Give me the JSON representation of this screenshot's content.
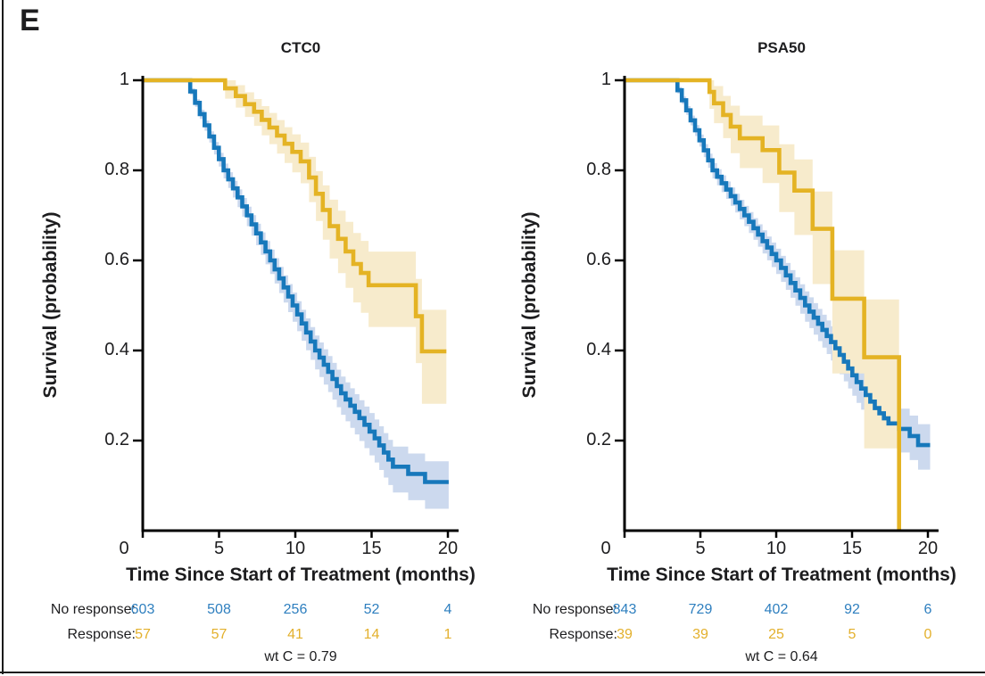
{
  "panel_label": "E",
  "colors": {
    "text": "#1d1d1f",
    "axis": "#000000",
    "no_response_line": "#1778bb",
    "response_line": "#e4b324",
    "no_response_band": "#ccd9ee",
    "response_band": "#f7ebcc",
    "no_response_value": "#2e7fbf",
    "response_value": "#e3b02c"
  },
  "chart_data": [
    {
      "type": "line",
      "subtype": "kaplan-meier",
      "title": "CTC0",
      "xlabel": "Time Since Start of Treatment (months)",
      "ylabel": "Survival (probability)",
      "xlim": [
        0,
        20.7
      ],
      "ylim": [
        0,
        1.02
      ],
      "xticks": [
        0,
        5,
        10,
        15,
        20
      ],
      "yticks": [
        1,
        0.8,
        0.6,
        0.4,
        0.2
      ],
      "grid": false,
      "series": [
        {
          "name": "No response",
          "color": "#1778bb",
          "band_color": "#ccd9ee",
          "anchors": [
            [
              0,
              1
            ],
            [
              2.8,
              1
            ],
            [
              5.3,
              0.8
            ],
            [
              8.35,
              0.6
            ],
            [
              11.3,
              0.4
            ],
            [
              13.0,
              0.305
            ],
            [
              14.2,
              0.25
            ],
            [
              15.2,
              0.205
            ],
            [
              16.4,
              0.142
            ]
          ],
          "steps": [
            [
              17.4,
              0.126
            ],
            [
              18.5,
              0.108
            ],
            [
              20.05,
              0.108
            ]
          ],
          "ci_band": {
            "base": 0.006,
            "up": 0.045,
            "down": 0.06
          }
        },
        {
          "name": "Response",
          "color": "#e4b324",
          "band_color": "#f7ebcc",
          "steps": [
            [
              0,
              1
            ],
            [
              5.4,
              0.982
            ],
            [
              6.1,
              0.965
            ],
            [
              6.7,
              0.947
            ],
            [
              7.3,
              0.93
            ],
            [
              7.8,
              0.912
            ],
            [
              8.3,
              0.895
            ],
            [
              8.8,
              0.877
            ],
            [
              9.3,
              0.859
            ],
            [
              9.8,
              0.841
            ],
            [
              10.35,
              0.82
            ],
            [
              10.9,
              0.784
            ],
            [
              11.35,
              0.748
            ],
            [
              11.8,
              0.712
            ],
            [
              12.25,
              0.676
            ],
            [
              12.8,
              0.648
            ],
            [
              13.3,
              0.62
            ],
            [
              13.8,
              0.592
            ],
            [
              14.3,
              0.572
            ],
            [
              14.8,
              0.545
            ],
            [
              17.9,
              0.476
            ],
            [
              18.3,
              0.398
            ],
            [
              19.9,
              0.398
            ]
          ],
          "ci_band": {
            "base": 0.02,
            "up": 0.12,
            "down": 0.16
          }
        }
      ],
      "risk_table": {
        "times": [
          0,
          5,
          10,
          15,
          20
        ],
        "rows": [
          {
            "label": "No response:",
            "color": "#2e7fbf",
            "values": [
              "603",
              "508",
              "256",
              "52",
              "4"
            ]
          },
          {
            "label": "Response:",
            "color": "#e3b02c",
            "values": [
              "57",
              "57",
              "41",
              "14",
              "1"
            ]
          }
        ]
      },
      "annotation": "wt C = 0.79"
    },
    {
      "type": "line",
      "subtype": "kaplan-meier",
      "title": "PSA50",
      "xlabel": "Time Since Start of Treatment (months)",
      "ylabel": "Survival (probability)",
      "xlim": [
        0,
        20.7
      ],
      "ylim": [
        0,
        1.02
      ],
      "xticks": [
        0,
        5,
        10,
        15,
        20
      ],
      "yticks": [
        1,
        0.8,
        0.6,
        0.4,
        0.2
      ],
      "grid": false,
      "series": [
        {
          "name": "No response",
          "color": "#1778bb",
          "band_color": "#ccd9ee",
          "anchors": [
            [
              0,
              1
            ],
            [
              3.2,
              1
            ],
            [
              5.8,
              0.8
            ],
            [
              10.0,
              0.6
            ],
            [
              11.9,
              0.5
            ],
            [
              13.9,
              0.405
            ],
            [
              15.3,
              0.33
            ],
            [
              16.5,
              0.272
            ],
            [
              17.4,
              0.238
            ]
          ],
          "steps": [
            [
              18.1,
              0.226
            ],
            [
              18.8,
              0.21
            ],
            [
              19.35,
              0.19
            ],
            [
              20.15,
              0.19
            ]
          ],
          "ci_band": {
            "base": 0.006,
            "up": 0.05,
            "down": 0.06
          }
        },
        {
          "name": "Response",
          "color": "#e4b324",
          "band_color": "#f7ebcc",
          "steps": [
            [
              0,
              1
            ],
            [
              5.6,
              0.974
            ],
            [
              5.9,
              0.949
            ],
            [
              6.5,
              0.923
            ],
            [
              7.0,
              0.897
            ],
            [
              7.6,
              0.871
            ],
            [
              9.1,
              0.845
            ],
            [
              10.2,
              0.795
            ],
            [
              11.2,
              0.755
            ],
            [
              12.4,
              0.67
            ],
            [
              13.7,
              0.515
            ],
            [
              15.8,
              0.385
            ],
            [
              18.1,
              0
            ]
          ],
          "ci_band": {
            "base": 0.03,
            "up": 0.16,
            "down": 0.28
          }
        }
      ],
      "risk_table": {
        "times": [
          0,
          5,
          10,
          15,
          20
        ],
        "rows": [
          {
            "label": "No response:",
            "color": "#2e7fbf",
            "values": [
              "843",
              "729",
              "402",
              "92",
              "6"
            ]
          },
          {
            "label": "Response:",
            "color": "#e3b02c",
            "values": [
              "39",
              "39",
              "25",
              "5",
              "0"
            ]
          }
        ]
      },
      "annotation": "wt C = 0.64"
    }
  ]
}
